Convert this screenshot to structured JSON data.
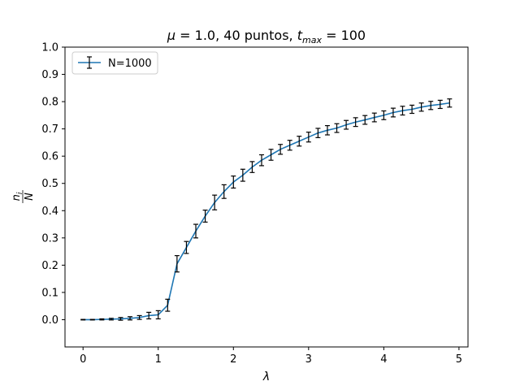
{
  "chart_data": {
    "type": "line",
    "title": "μ = 1.0, 40 puntos, t_max = 100",
    "title_parts": {
      "mu": "μ",
      "eq1": " = 1.0, 40 puntos, ",
      "t": "t",
      "sub": "max",
      "eq2": " = 100"
    },
    "xlabel": "λ",
    "ylabel_num": "n",
    "ylabel_num_sub": "i",
    "ylabel_den": "N",
    "xlim": [
      -0.24,
      5.12
    ],
    "ylim": [
      -0.1,
      1.0
    ],
    "xticks": [
      0,
      1,
      2,
      3,
      4,
      5
    ],
    "xtick_labels": [
      "0",
      "1",
      "2",
      "3",
      "4",
      "5"
    ],
    "yticks": [
      0.0,
      0.1,
      0.2,
      0.3,
      0.4,
      0.5,
      0.6,
      0.7,
      0.8,
      0.9,
      1.0
    ],
    "ytick_labels": [
      "0.0",
      "0.1",
      "0.2",
      "0.3",
      "0.4",
      "0.5",
      "0.6",
      "0.7",
      "0.8",
      "0.9",
      "1.0"
    ],
    "grid": false,
    "legend": {
      "location": "upper-left",
      "entries": [
        "N=1000"
      ]
    },
    "series": [
      {
        "name": "N=1000",
        "color": "#1f77b4",
        "errorbar_color": "#000000",
        "x": [
          0,
          0.125,
          0.25,
          0.375,
          0.5,
          0.625,
          0.75,
          0.875,
          1.0,
          1.125,
          1.25,
          1.375,
          1.5,
          1.625,
          1.75,
          1.875,
          2.0,
          2.125,
          2.25,
          2.375,
          2.5,
          2.625,
          2.75,
          2.875,
          3.0,
          3.125,
          3.25,
          3.375,
          3.5,
          3.625,
          3.75,
          3.875,
          4.0,
          4.125,
          4.25,
          4.375,
          4.5,
          4.625,
          4.75,
          4.875
        ],
        "y": [
          0.0,
          0.0,
          0.001,
          0.002,
          0.003,
          0.005,
          0.008,
          0.015,
          0.018,
          0.053,
          0.205,
          0.265,
          0.325,
          0.38,
          0.43,
          0.47,
          0.505,
          0.53,
          0.56,
          0.585,
          0.605,
          0.625,
          0.64,
          0.655,
          0.67,
          0.685,
          0.695,
          0.703,
          0.715,
          0.725,
          0.733,
          0.742,
          0.75,
          0.76,
          0.767,
          0.772,
          0.78,
          0.786,
          0.79,
          0.795
        ],
        "yerr": [
          0.001,
          0.001,
          0.002,
          0.003,
          0.005,
          0.006,
          0.007,
          0.012,
          0.015,
          0.022,
          0.03,
          0.022,
          0.025,
          0.022,
          0.027,
          0.025,
          0.022,
          0.022,
          0.02,
          0.02,
          0.02,
          0.018,
          0.018,
          0.018,
          0.018,
          0.017,
          0.017,
          0.016,
          0.016,
          0.016,
          0.016,
          0.016,
          0.016,
          0.016,
          0.016,
          0.015,
          0.015,
          0.015,
          0.015,
          0.015
        ]
      }
    ]
  }
}
